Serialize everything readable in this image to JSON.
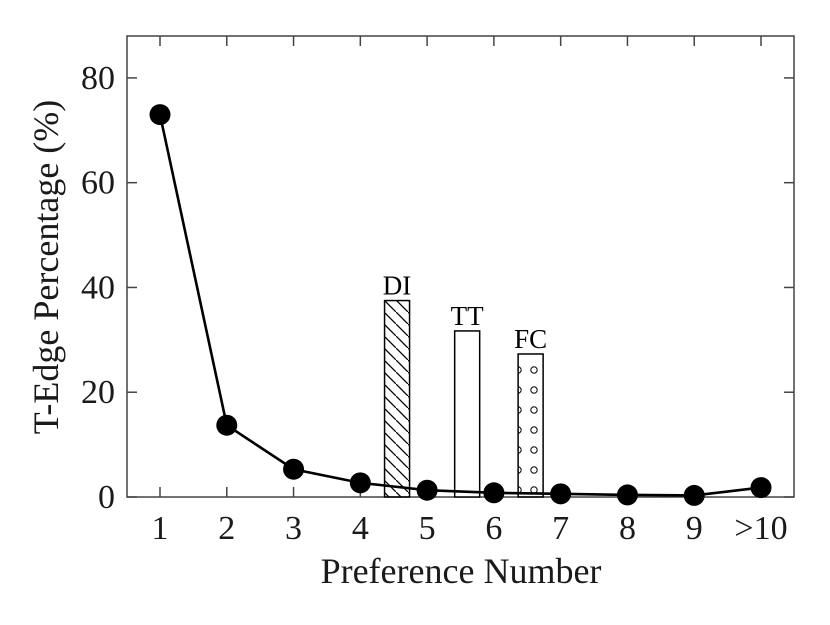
{
  "chart_data": {
    "type": "line",
    "title": "",
    "xlabel": "Preference Number",
    "ylabel": "T-Edge Percentage (%)",
    "categories": [
      "1",
      "2",
      "3",
      "4",
      "5",
      "6",
      "7",
      "8",
      "9",
      ">10"
    ],
    "ylim": [
      0,
      88
    ],
    "yticks": [
      0,
      20,
      40,
      60,
      80
    ],
    "grid": false,
    "series": [
      {
        "values": [
          73,
          13.7,
          5.3,
          2.7,
          1.3,
          0.8,
          0.6,
          0.4,
          0.3,
          1.8
        ]
      }
    ],
    "bars": [
      {
        "label": "DI",
        "value": 37.5,
        "x": 4.55,
        "pattern": "hatch"
      },
      {
        "label": "TT",
        "value": 31.7,
        "x": 5.6,
        "pattern": "none"
      },
      {
        "label": "FC",
        "value": 27.3,
        "x": 6.55,
        "pattern": "dots"
      }
    ]
  }
}
